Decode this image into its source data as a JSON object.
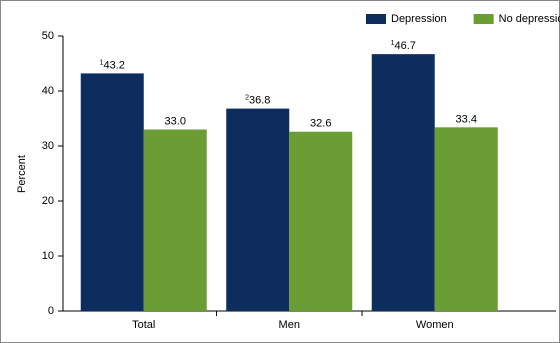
{
  "chart_data": {
    "type": "bar",
    "y_label": "Percent",
    "categories": [
      "Total",
      "Men",
      "Women"
    ],
    "series": [
      {
        "name": "Depression",
        "color": "#0c2d5e",
        "values": [
          43.2,
          36.8,
          46.7
        ],
        "value_labels": [
          "43.2",
          "36.8",
          "46.7"
        ],
        "notes": [
          "1",
          "2",
          "1"
        ]
      },
      {
        "name": "No depression",
        "color": "#6b9d35",
        "values": [
          33.0,
          32.6,
          33.4
        ],
        "value_labels": [
          "33.0",
          "32.6",
          "33.4"
        ]
      }
    ],
    "ylim": [
      0,
      50
    ],
    "yticks": [
      0,
      10,
      20,
      30,
      40,
      50
    ],
    "grid": false,
    "legend": "top-right"
  }
}
